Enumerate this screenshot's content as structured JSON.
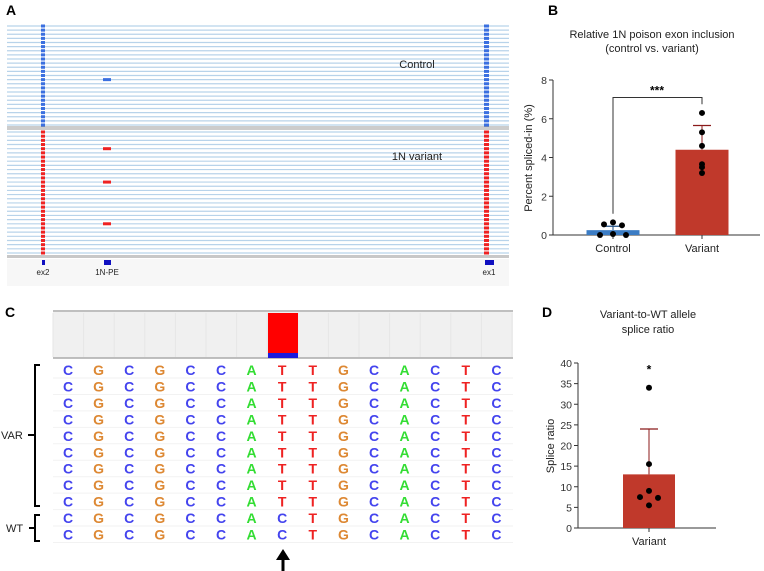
{
  "panels": {
    "a": "A",
    "b": "B",
    "c": "C",
    "d": "D"
  },
  "panel_a": {
    "group_labels": [
      "Control",
      "1N variant"
    ],
    "exon_labels": [
      "ex2",
      "1N-PE",
      "ex1"
    ],
    "colors": {
      "control": "#3a6fe0",
      "variant": "#ee2222",
      "read": "#b8d3ea",
      "exon": "#1010c0"
    }
  },
  "panel_c": {
    "group_labels": {
      "var": "VAR",
      "wt": "WT"
    },
    "var_sequence": [
      "C",
      "G",
      "C",
      "G",
      "C",
      "C",
      "A",
      "T",
      "T",
      "G",
      "C",
      "A",
      "C",
      "T",
      "C"
    ],
    "wt_sequence": [
      "C",
      "G",
      "C",
      "G",
      "C",
      "C",
      "A",
      "C",
      "T",
      "G",
      "C",
      "A",
      "C",
      "T",
      "C"
    ],
    "var_rows": 9,
    "wt_rows": 2,
    "variant_position": 8,
    "base_colors": {
      "A": "#33dd33",
      "C": "#4444ee",
      "G": "#dd8833",
      "T": "#ee2222"
    }
  },
  "chart_data": [
    {
      "type": "bar",
      "title": "Relative 1N poison exon inclusion",
      "subtitle": "(control vs. variant)",
      "xlabel": "",
      "ylabel": "Percent spliced-in (%)",
      "ylim": [
        0,
        8
      ],
      "yticks": [
        "0",
        "2",
        "4",
        "6",
        "8"
      ],
      "categories": [
        "Control",
        "Variant"
      ],
      "values": [
        0.25,
        4.4
      ],
      "error_upper": [
        0.45,
        5.65
      ],
      "points": [
        [
          0.55,
          0.65,
          0.5,
          0.0,
          0.05,
          0.0
        ],
        [
          6.3,
          5.3,
          4.6,
          3.65,
          3.5,
          3.2
        ]
      ],
      "colors": [
        "#3b7cc4",
        "#c0392b"
      ],
      "significance": "***"
    },
    {
      "type": "bar",
      "title": "Variant-to-WT allele",
      "subtitle": "splice ratio",
      "xlabel": "",
      "ylabel": "Splice ratio",
      "ylim": [
        0,
        40
      ],
      "yticks": [
        "0",
        "5",
        "10",
        "15",
        "20",
        "25",
        "30",
        "35",
        "40"
      ],
      "categories": [
        "Variant"
      ],
      "values": [
        13
      ],
      "error_upper": [
        24
      ],
      "points": [
        [
          34,
          15.5,
          9,
          7.5,
          7.3,
          5.5
        ]
      ],
      "colors": [
        "#c0392b"
      ],
      "significance": "*"
    }
  ]
}
